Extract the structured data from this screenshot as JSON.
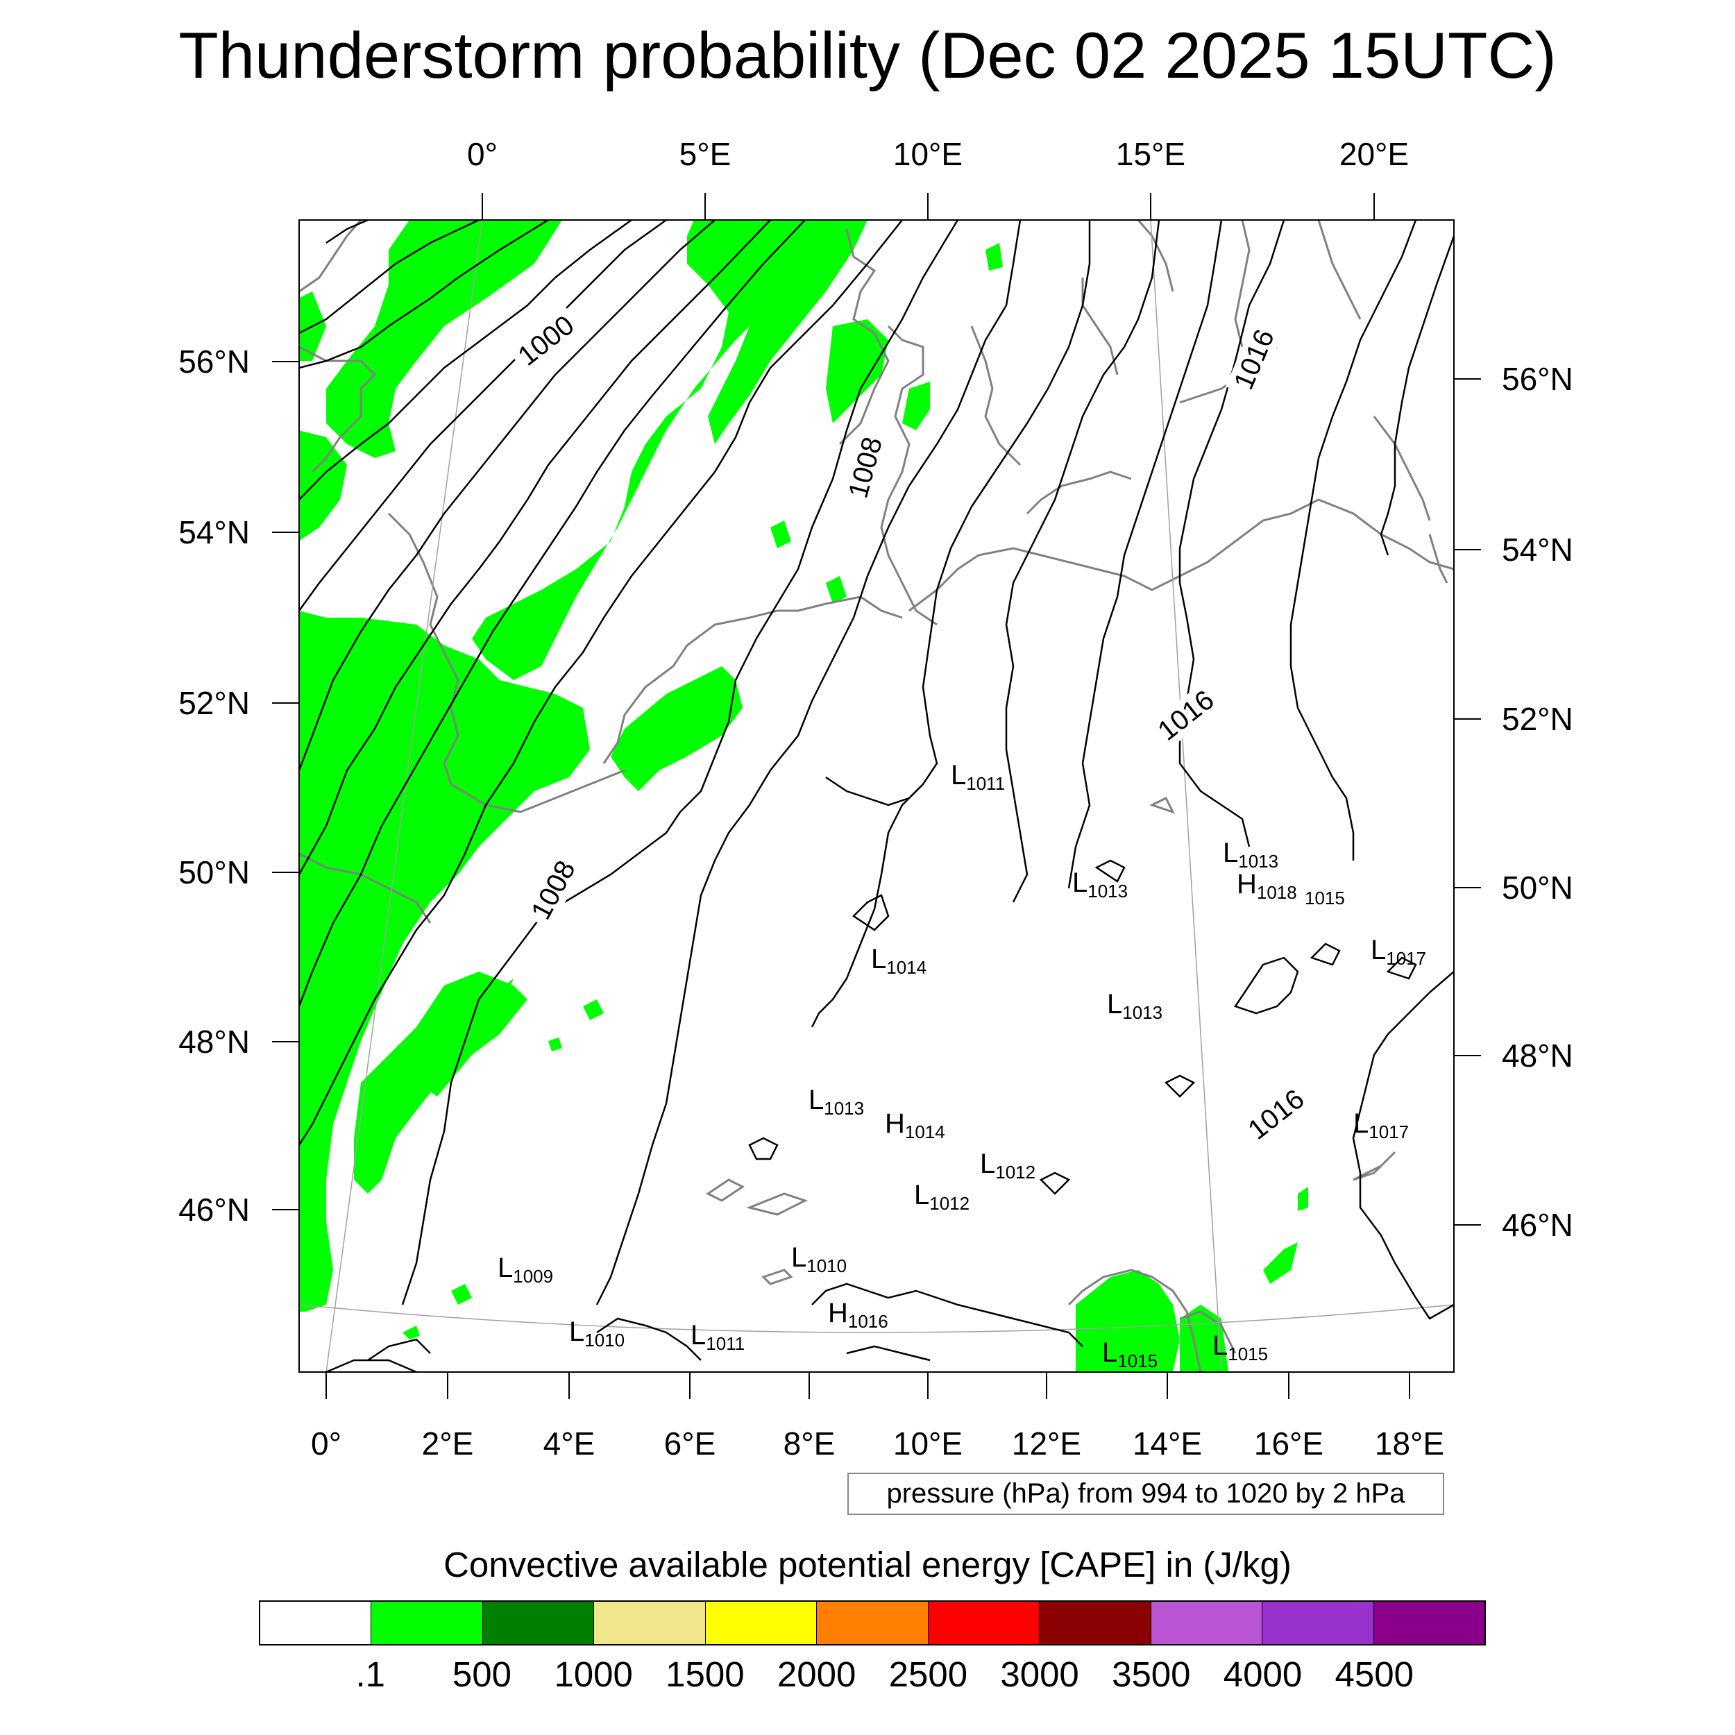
{
  "title": "Thunderstorm probability (Dec 02 2025 15UTC)",
  "pressure_note": "pressure (hPa) from 994 to 1020 by 2 hPa",
  "colorbar": {
    "title": "Convective available potential energy [CAPE] in (J/kg)",
    "colors": [
      "#ffffff",
      "#00ff00",
      "#008000",
      "#f0e68c",
      "#ffff00",
      "#ff8000",
      "#ff0000",
      "#8b0000",
      "#ba55d3",
      "#9932cc",
      "#8b008b"
    ],
    "labels": [
      ".1",
      "500",
      "1000",
      "1500",
      "2000",
      "2500",
      "3000",
      "3500",
      "4000",
      "4500"
    ]
  },
  "map": {
    "top_lon_labels": [
      "0°",
      "5°E",
      "10°E",
      "15°E",
      "20°E"
    ],
    "bottom_lon_labels": [
      "0°",
      "2°E",
      "4°E",
      "6°E",
      "8°E",
      "10°E",
      "12°E",
      "14°E",
      "16°E",
      "18°E"
    ],
    "left_lat_labels": [
      "56°N",
      "54°N",
      "52°N",
      "50°N",
      "48°N",
      "46°N"
    ],
    "right_lat_labels": [
      "56°N",
      "54°N",
      "52°N",
      "50°N",
      "48°N",
      "46°N"
    ],
    "isobar_labels": [
      "1000",
      "1008",
      "1008",
      "1016",
      "1016",
      "1016"
    ],
    "pressure_centers": [
      {
        "letter": "L",
        "value": "1011"
      },
      {
        "letter": "L",
        "value": "1013"
      },
      {
        "letter": "L",
        "value": "1013"
      },
      {
        "letter": "H",
        "value": "1018"
      },
      {
        "letter": "",
        "value": "1015"
      },
      {
        "letter": "L",
        "value": "1014"
      },
      {
        "letter": "L",
        "value": "1017"
      },
      {
        "letter": "L",
        "value": "1013"
      },
      {
        "letter": "L",
        "value": "1013"
      },
      {
        "letter": "H",
        "value": "1014"
      },
      {
        "letter": "L",
        "value": "1017"
      },
      {
        "letter": "L",
        "value": "1012"
      },
      {
        "letter": "L",
        "value": "1012"
      },
      {
        "letter": "L",
        "value": "1009"
      },
      {
        "letter": "L",
        "value": "1010"
      },
      {
        "letter": "L",
        "value": "1010"
      },
      {
        "letter": "L",
        "value": "1011"
      },
      {
        "letter": "H",
        "value": "1016"
      },
      {
        "letter": "L",
        "value": "1015"
      },
      {
        "letter": "L",
        "value": "1015"
      }
    ]
  }
}
